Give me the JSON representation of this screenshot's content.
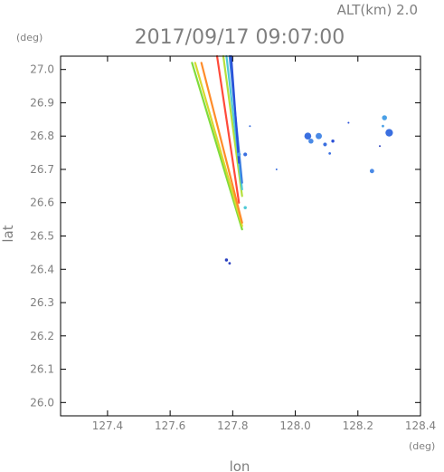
{
  "header": {
    "altitude": "ALT(km) 2.0",
    "datetime": "2017/09/17 09:07:00"
  },
  "chart_data": {
    "type": "scatter",
    "title": "2017/09/17 09:07:00",
    "subtitle": "ALT(km) 2.0",
    "xlabel": "lon",
    "ylabel": "lat",
    "xunit": "(deg)",
    "yunit": "(deg)",
    "xlim": [
      127.25,
      128.4
    ],
    "ylim": [
      25.96,
      27.04
    ],
    "grid": false,
    "xticks": [
      {
        "value": 127.4,
        "label": "127.4"
      },
      {
        "value": 127.6,
        "label": "127.6"
      },
      {
        "value": 127.8,
        "label": "127.8"
      },
      {
        "value": 128.0,
        "label": "128.0"
      },
      {
        "value": 128.2,
        "label": "128.2"
      },
      {
        "value": 128.4,
        "label": "128.4"
      }
    ],
    "yticks": [
      {
        "value": 26.0,
        "label": "26.0"
      },
      {
        "value": 26.1,
        "label": "26.1"
      },
      {
        "value": 26.2,
        "label": "26.2"
      },
      {
        "value": 26.3,
        "label": "26.3"
      },
      {
        "value": 26.4,
        "label": "26.4"
      },
      {
        "value": 26.5,
        "label": "26.5"
      },
      {
        "value": 26.6,
        "label": "26.6"
      },
      {
        "value": 26.7,
        "label": "26.7"
      },
      {
        "value": 26.8,
        "label": "26.8"
      },
      {
        "value": 26.9,
        "label": "26.9"
      },
      {
        "value": 27.0,
        "label": "27.0"
      }
    ],
    "streaks": [
      {
        "from": [
          127.67,
          27.02
        ],
        "to": [
          127.83,
          26.52
        ],
        "color": "#7fdc3c"
      },
      {
        "from": [
          127.68,
          27.02
        ],
        "to": [
          127.83,
          26.53
        ],
        "color": "#d8d830"
      },
      {
        "from": [
          127.7,
          27.02
        ],
        "to": [
          127.83,
          26.54
        ],
        "color": "#ff8c2a"
      },
      {
        "from": [
          127.75,
          27.04
        ],
        "to": [
          127.82,
          26.6
        ],
        "color": "#ff4a3a"
      },
      {
        "from": [
          127.77,
          27.04
        ],
        "to": [
          127.83,
          26.62
        ],
        "color": "#b5e03c"
      },
      {
        "from": [
          127.78,
          27.04
        ],
        "to": [
          127.83,
          26.64
        ],
        "color": "#4ec9d6"
      },
      {
        "from": [
          127.79,
          27.04
        ],
        "to": [
          127.83,
          26.66
        ],
        "color": "#3a7fe0"
      },
      {
        "from": [
          127.795,
          27.04
        ],
        "to": [
          127.82,
          26.72
        ],
        "color": "#2a50d8"
      }
    ],
    "patches": [
      {
        "lon": 127.82,
        "lat": 26.745,
        "r": 0.006,
        "color": "#4aa0e6"
      },
      {
        "lon": 127.84,
        "lat": 26.745,
        "r": 0.006,
        "color": "#3a6fe0"
      },
      {
        "lon": 127.84,
        "lat": 26.585,
        "r": 0.005,
        "color": "#4ec9d6"
      },
      {
        "lon": 127.855,
        "lat": 26.83,
        "r": 0.002,
        "color": "#3a6fe0"
      },
      {
        "lon": 127.78,
        "lat": 26.428,
        "r": 0.005,
        "color": "#2a40c0"
      },
      {
        "lon": 127.79,
        "lat": 26.418,
        "r": 0.004,
        "color": "#2a40c0"
      },
      {
        "lon": 128.04,
        "lat": 26.8,
        "r": 0.011,
        "color": "#3a6fe0"
      },
      {
        "lon": 128.05,
        "lat": 26.785,
        "r": 0.008,
        "color": "#4a8ae6"
      },
      {
        "lon": 128.075,
        "lat": 26.8,
        "r": 0.01,
        "color": "#4a8ae6"
      },
      {
        "lon": 128.095,
        "lat": 26.775,
        "r": 0.006,
        "color": "#3a6fe0"
      },
      {
        "lon": 128.12,
        "lat": 26.785,
        "r": 0.005,
        "color": "#2a50d8"
      },
      {
        "lon": 128.11,
        "lat": 26.748,
        "r": 0.004,
        "color": "#3a6fe0"
      },
      {
        "lon": 128.17,
        "lat": 26.84,
        "r": 0.003,
        "color": "#2a50d8"
      },
      {
        "lon": 128.245,
        "lat": 26.695,
        "r": 0.007,
        "color": "#4a8ae6"
      },
      {
        "lon": 128.285,
        "lat": 26.855,
        "r": 0.008,
        "color": "#4aa0e6"
      },
      {
        "lon": 128.3,
        "lat": 26.81,
        "r": 0.012,
        "color": "#3a6fe0"
      },
      {
        "lon": 128.28,
        "lat": 26.83,
        "r": 0.004,
        "color": "#4aa0e6"
      },
      {
        "lon": 128.27,
        "lat": 26.77,
        "r": 0.002,
        "color": "#2a40c0"
      },
      {
        "lon": 127.94,
        "lat": 26.7,
        "r": 0.0015,
        "color": "#3a6fe0"
      }
    ]
  }
}
